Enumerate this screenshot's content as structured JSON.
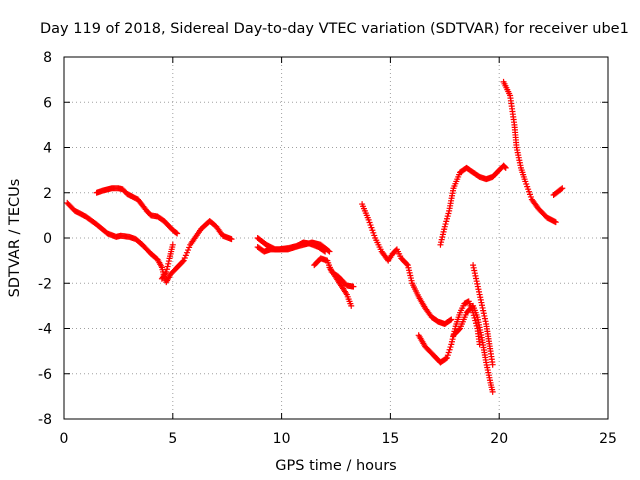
{
  "chart_data": {
    "type": "scatter",
    "title": "Day 119 of 2018, Sidereal Day-to-day VTEC variation (SDTVAR) for receiver ube1",
    "xlabel": "GPS time / hours",
    "ylabel": "SDTVAR / TECUs",
    "xlim": [
      0,
      25
    ],
    "ylim": [
      -8,
      8
    ],
    "xticks": [
      "0",
      "5",
      "10",
      "15",
      "20",
      "25"
    ],
    "yticks": [
      "8",
      "6",
      "4",
      "2",
      "0",
      "-2",
      "-4",
      "-6",
      "-8"
    ],
    "grid": true,
    "marker": "plus",
    "color": "#ff0000",
    "series": [
      {
        "name": "track-1",
        "points": [
          [
            0.15,
            1.55
          ],
          [
            0.5,
            1.2
          ],
          [
            1.0,
            0.95
          ],
          [
            1.5,
            0.6
          ],
          [
            2.0,
            0.2
          ],
          [
            2.4,
            0.05
          ],
          [
            2.6,
            0.1
          ],
          [
            3.0,
            0.05
          ],
          [
            3.3,
            -0.05
          ],
          [
            3.6,
            -0.3
          ],
          [
            4.0,
            -0.7
          ],
          [
            4.3,
            -0.95
          ],
          [
            4.5,
            -1.3
          ],
          [
            4.6,
            -1.7
          ],
          [
            4.7,
            -1.95
          ],
          [
            4.9,
            -1.6
          ],
          [
            5.1,
            -1.4
          ],
          [
            5.5,
            -1.0
          ],
          [
            5.8,
            -0.3
          ],
          [
            6.3,
            0.4
          ],
          [
            6.7,
            0.75
          ],
          [
            7.0,
            0.5
          ],
          [
            7.3,
            0.1
          ],
          [
            7.7,
            -0.05
          ]
        ]
      },
      {
        "name": "track-2",
        "points": [
          [
            1.5,
            2.0
          ],
          [
            1.8,
            2.1
          ],
          [
            2.2,
            2.2
          ],
          [
            2.5,
            2.2
          ],
          [
            2.7,
            2.15
          ],
          [
            2.9,
            1.95
          ],
          [
            3.1,
            1.85
          ],
          [
            3.4,
            1.7
          ],
          [
            3.6,
            1.45
          ],
          [
            3.8,
            1.2
          ],
          [
            4.0,
            1.0
          ],
          [
            4.3,
            0.95
          ],
          [
            4.6,
            0.75
          ],
          [
            4.8,
            0.55
          ],
          [
            5.0,
            0.35
          ],
          [
            5.2,
            0.2
          ]
        ]
      },
      {
        "name": "track-3",
        "points": [
          [
            4.5,
            -1.8
          ],
          [
            4.7,
            -1.5
          ],
          [
            4.85,
            -0.9
          ],
          [
            5.0,
            -0.3
          ]
        ]
      },
      {
        "name": "track-4",
        "points": [
          [
            8.9,
            -0.4
          ],
          [
            9.2,
            -0.6
          ],
          [
            9.5,
            -0.5
          ],
          [
            9.9,
            -0.5
          ],
          [
            10.3,
            -0.45
          ],
          [
            10.7,
            -0.35
          ],
          [
            11.0,
            -0.2
          ],
          [
            11.3,
            -0.25
          ],
          [
            11.7,
            -0.4
          ],
          [
            12.0,
            -0.6
          ]
        ]
      },
      {
        "name": "track-5",
        "points": [
          [
            8.9,
            0.0
          ],
          [
            9.3,
            -0.3
          ],
          [
            9.7,
            -0.5
          ],
          [
            10.3,
            -0.5
          ],
          [
            10.8,
            -0.35
          ],
          [
            11.4,
            -0.2
          ],
          [
            11.8,
            -0.3
          ],
          [
            12.2,
            -0.6
          ]
        ]
      },
      {
        "name": "track-6",
        "points": [
          [
            11.5,
            -1.2
          ],
          [
            11.8,
            -0.9
          ],
          [
            12.1,
            -1.0
          ],
          [
            12.3,
            -1.5
          ],
          [
            12.6,
            -1.7
          ],
          [
            12.8,
            -1.9
          ],
          [
            13.0,
            -2.1
          ],
          [
            13.3,
            -2.15
          ]
        ]
      },
      {
        "name": "track-7",
        "points": [
          [
            12.2,
            -1.3
          ],
          [
            12.6,
            -1.9
          ],
          [
            13.0,
            -2.5
          ],
          [
            13.2,
            -3.0
          ]
        ]
      },
      {
        "name": "track-8",
        "points": [
          [
            13.7,
            1.5
          ],
          [
            14.0,
            0.8
          ],
          [
            14.3,
            0.0
          ],
          [
            14.6,
            -0.6
          ],
          [
            14.9,
            -1.0
          ],
          [
            15.1,
            -0.7
          ],
          [
            15.3,
            -0.5
          ],
          [
            15.5,
            -0.9
          ],
          [
            15.8,
            -1.2
          ],
          [
            16.0,
            -2.0
          ],
          [
            16.3,
            -2.6
          ],
          [
            16.6,
            -3.1
          ],
          [
            16.9,
            -3.5
          ],
          [
            17.2,
            -3.7
          ],
          [
            17.5,
            -3.8
          ],
          [
            17.8,
            -3.6
          ]
        ]
      },
      {
        "name": "track-9",
        "points": [
          [
            16.3,
            -4.3
          ],
          [
            16.6,
            -4.8
          ],
          [
            17.0,
            -5.2
          ],
          [
            17.3,
            -5.5
          ],
          [
            17.6,
            -5.3
          ],
          [
            17.8,
            -4.7
          ],
          [
            18.0,
            -3.9
          ],
          [
            18.2,
            -3.3
          ],
          [
            18.4,
            -2.9
          ],
          [
            18.6,
            -2.8
          ],
          [
            18.8,
            -3.3
          ],
          [
            19.0,
            -4.0
          ],
          [
            19.1,
            -4.7
          ]
        ]
      },
      {
        "name": "track-10",
        "points": [
          [
            17.9,
            -4.3
          ],
          [
            18.2,
            -4.0
          ],
          [
            18.5,
            -3.3
          ],
          [
            18.8,
            -3.0
          ],
          [
            19.0,
            -3.5
          ],
          [
            19.2,
            -4.4
          ],
          [
            19.4,
            -5.5
          ],
          [
            19.6,
            -6.4
          ],
          [
            19.7,
            -6.8
          ]
        ]
      },
      {
        "name": "track-11",
        "points": [
          [
            18.8,
            -1.2
          ],
          [
            19.1,
            -2.5
          ],
          [
            19.4,
            -3.8
          ],
          [
            19.6,
            -5.0
          ],
          [
            19.7,
            -5.6
          ]
        ]
      },
      {
        "name": "track-12",
        "points": [
          [
            17.3,
            -0.3
          ],
          [
            17.5,
            0.5
          ],
          [
            17.7,
            1.2
          ],
          [
            17.9,
            2.2
          ],
          [
            18.2,
            2.9
          ],
          [
            18.5,
            3.1
          ],
          [
            18.8,
            2.9
          ],
          [
            19.1,
            2.7
          ],
          [
            19.4,
            2.6
          ],
          [
            19.7,
            2.7
          ],
          [
            20.0,
            3.0
          ],
          [
            20.2,
            3.2
          ],
          [
            20.3,
            3.1
          ]
        ]
      },
      {
        "name": "track-13",
        "points": [
          [
            20.2,
            6.9
          ],
          [
            20.5,
            6.3
          ],
          [
            20.7,
            5.0
          ],
          [
            20.8,
            4.0
          ],
          [
            21.0,
            3.1
          ],
          [
            21.2,
            2.5
          ],
          [
            21.5,
            1.7
          ],
          [
            21.8,
            1.3
          ],
          [
            22.2,
            0.9
          ],
          [
            22.6,
            0.7
          ]
        ]
      },
      {
        "name": "track-14",
        "points": [
          [
            22.5,
            1.9
          ],
          [
            22.7,
            2.05
          ],
          [
            22.9,
            2.2
          ]
        ]
      }
    ]
  }
}
